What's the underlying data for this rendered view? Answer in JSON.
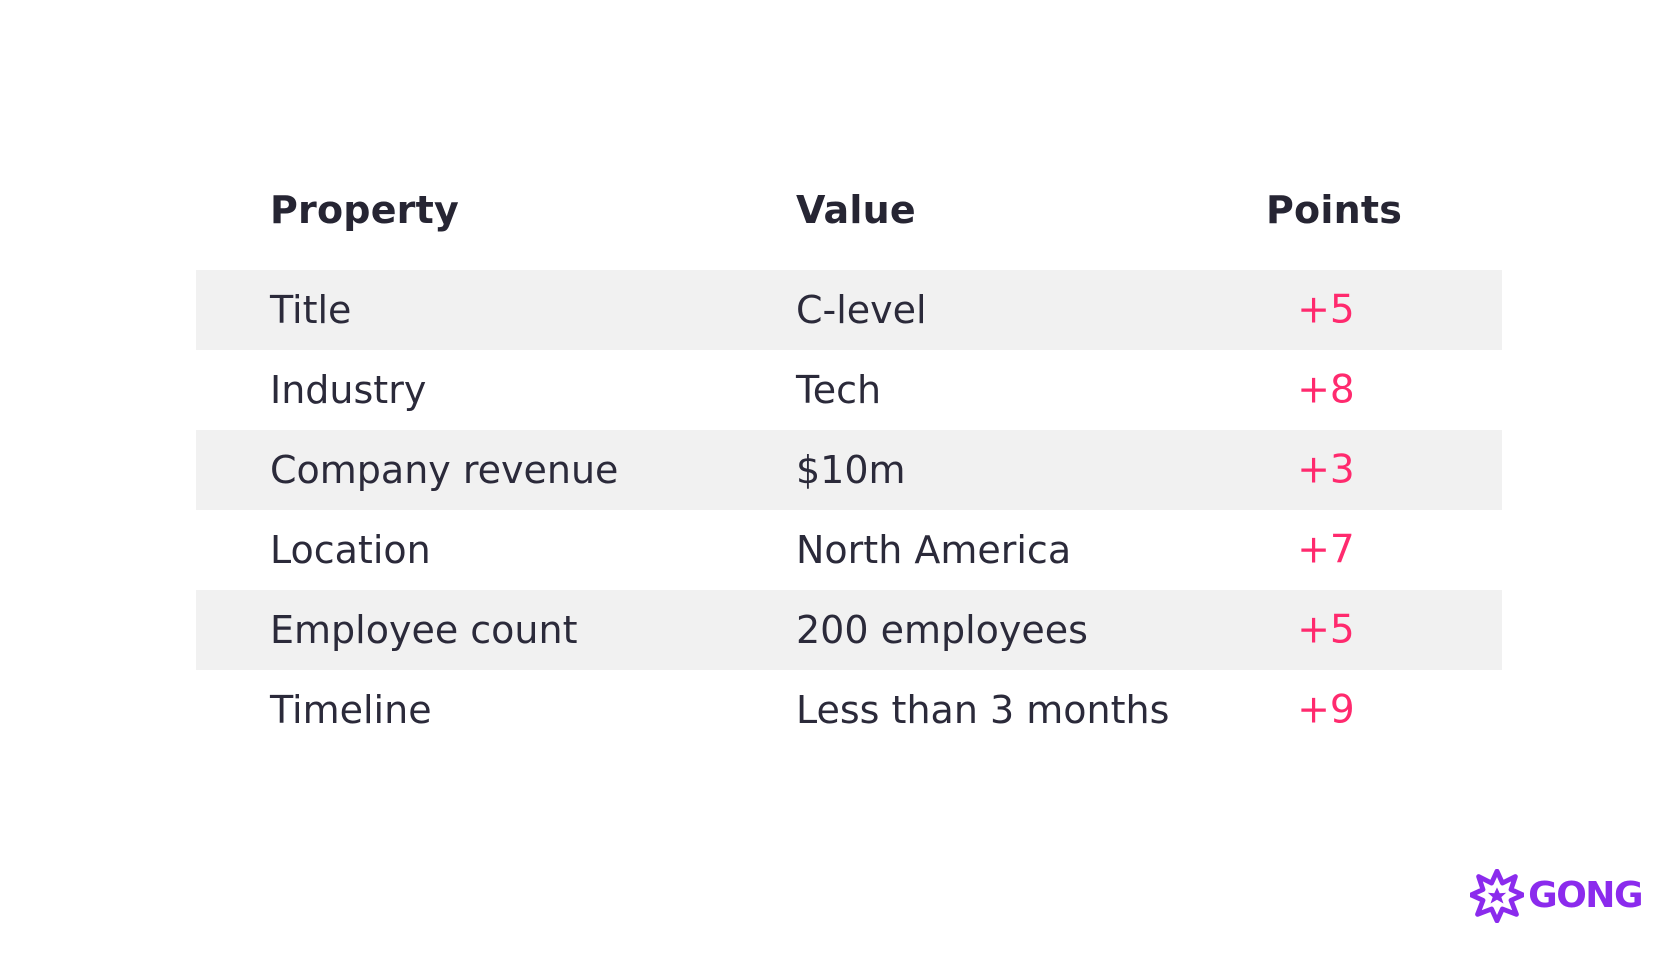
{
  "table": {
    "headers": {
      "property": "Property",
      "value": "Value",
      "points": "Points"
    },
    "rows": [
      {
        "property": "Title",
        "value": "C-level",
        "points": "+5"
      },
      {
        "property": "Industry",
        "value": "Tech",
        "points": "+8"
      },
      {
        "property": "Company revenue",
        "value": "$10m",
        "points": "+3"
      },
      {
        "property": "Location",
        "value": "North America",
        "points": "+7"
      },
      {
        "property": "Employee count",
        "value": "200 employees",
        "points": "+5"
      },
      {
        "property": "Timeline",
        "value": "Less than 3 months",
        "points": "+9"
      }
    ]
  },
  "brand": {
    "logo_text": "GONG",
    "logo_icon": "starburst-icon",
    "brand_color": "#8b2bed",
    "points_color": "#ff2a6e",
    "row_shade_color": "#f1f1f1"
  }
}
